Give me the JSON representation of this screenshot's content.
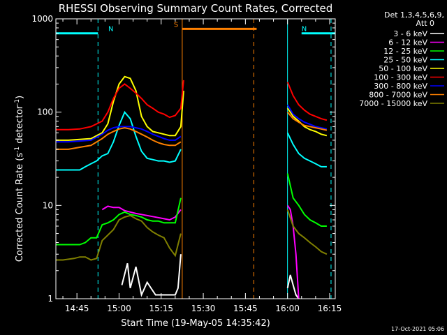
{
  "chart_data": {
    "type": "line",
    "title": "RHESSI Observing Summary Count Rates, Corrected",
    "xlabel": "Start Time (19-May-05 14:35:42)",
    "ylabel_main": "Corrected Count Rate (s",
    "ylabel_sup1": "-1",
    "ylabel_mid": " detector",
    "ylabel_sup2": "-1",
    "ylabel_end": ")",
    "yscale": "log",
    "ylim": [
      1,
      1000
    ],
    "xlim_minutes": [
      37.5,
      137
    ],
    "x_ticks": [
      {
        "label": "14:45",
        "min": 45
      },
      {
        "label": "15:00",
        "min": 60
      },
      {
        "label": "15:15",
        "min": 75
      },
      {
        "label": "15:30",
        "min": 90
      },
      {
        "label": "15:45",
        "min": 105
      },
      {
        "label": "16:00",
        "min": 120
      },
      {
        "label": "16:15",
        "min": 135
      }
    ],
    "y_ticks": [
      {
        "label": "1",
        "value": 1
      },
      {
        "label": "10",
        "value": 10
      },
      {
        "label": "100",
        "value": 100
      },
      {
        "label": "1000",
        "value": 1000
      }
    ],
    "legend_header": [
      "Det 1,3,4,5,6,9,",
      "Att 0"
    ],
    "legend_placement": "right",
    "timestamp": "17-Oct-2021 05:06",
    "flags": [
      {
        "label": "N",
        "color": "#00ffff",
        "start": 37.5,
        "end": 52.5,
        "level": 700
      },
      {
        "label": "N",
        "color": "#00ffff",
        "start": 125,
        "end": 137,
        "level": 700
      },
      {
        "label": "S",
        "color": "#ff8000",
        "start": 82.5,
        "end": 109,
        "level": 780
      }
    ],
    "night_lines": [
      {
        "t": 37.5,
        "style": "solid",
        "color": "#00ffff"
      },
      {
        "t": 52.5,
        "style": "dashed",
        "color": "#00ffff"
      },
      {
        "t": 120,
        "style": "solid",
        "color": "#00ffff"
      },
      {
        "t": 135.5,
        "style": "dashed",
        "color": "#00ffff"
      }
    ],
    "saa_lines": [
      {
        "t": 82.5,
        "style": "solid",
        "color": "#ff8000"
      },
      {
        "t": 108,
        "style": "dashed",
        "color": "#ff8000"
      }
    ],
    "series": [
      {
        "name": "3 - 6 keV",
        "color": "#ffffff",
        "points": [
          [
            61,
            1.4
          ],
          [
            63,
            2.4
          ],
          [
            64,
            1.3
          ],
          [
            66,
            2.2
          ],
          [
            68,
            1.1
          ],
          [
            70,
            1.5
          ],
          [
            73,
            1.1
          ],
          [
            78,
            1.1
          ],
          [
            80,
            1.1
          ],
          [
            81,
            1.3
          ],
          [
            82,
            3
          ],
          [
            120,
            1.3
          ],
          [
            121,
            1.8
          ],
          [
            122,
            1.4
          ],
          [
            123,
            1.1
          ],
          [
            124,
            1.0
          ]
        ]
      },
      {
        "name": "6 - 12 keV",
        "color": "#ff00ff",
        "points": [
          [
            54,
            9
          ],
          [
            56,
            9.8
          ],
          [
            58,
            9.5
          ],
          [
            60,
            9.5
          ],
          [
            62,
            8.8
          ],
          [
            64,
            8.5
          ],
          [
            66,
            8.2
          ],
          [
            68,
            8.0
          ],
          [
            70,
            7.8
          ],
          [
            72,
            7.6
          ],
          [
            74,
            7.4
          ],
          [
            76,
            7.2
          ],
          [
            78,
            7.0
          ],
          [
            80,
            7.5
          ],
          [
            82,
            9
          ],
          [
            120,
            10
          ],
          [
            121,
            9
          ],
          [
            122,
            6
          ],
          [
            123,
            3
          ],
          [
            124,
            1.0
          ]
        ]
      },
      {
        "name": "12 - 25 keV",
        "color": "#00ff00",
        "points": [
          [
            37.5,
            3.8
          ],
          [
            40,
            3.8
          ],
          [
            44,
            3.8
          ],
          [
            46,
            3.8
          ],
          [
            48,
            4.0
          ],
          [
            50,
            4.5
          ],
          [
            52,
            4.5
          ],
          [
            54,
            6.2
          ],
          [
            56,
            6.5
          ],
          [
            58,
            7.0
          ],
          [
            60,
            8.0
          ],
          [
            62,
            8.5
          ],
          [
            64,
            8.0
          ],
          [
            66,
            7.8
          ],
          [
            68,
            7.5
          ],
          [
            70,
            7.0
          ],
          [
            72,
            6.8
          ],
          [
            74,
            6.8
          ],
          [
            76,
            6.5
          ],
          [
            78,
            6.5
          ],
          [
            80,
            6.5
          ],
          [
            82,
            12
          ],
          [
            120,
            22
          ],
          [
            122,
            12
          ],
          [
            124,
            10
          ],
          [
            126,
            8
          ],
          [
            128,
            7
          ],
          [
            130,
            6.5
          ],
          [
            132,
            6
          ],
          [
            134,
            6
          ]
        ]
      },
      {
        "name": "25 - 50 keV",
        "color": "#00ffff",
        "points": [
          [
            37.5,
            24
          ],
          [
            40,
            24
          ],
          [
            44,
            24
          ],
          [
            46,
            24
          ],
          [
            48,
            26
          ],
          [
            50,
            28
          ],
          [
            52,
            30
          ],
          [
            54,
            34
          ],
          [
            56,
            36
          ],
          [
            58,
            48
          ],
          [
            60,
            72
          ],
          [
            62,
            100
          ],
          [
            64,
            85
          ],
          [
            66,
            55
          ],
          [
            68,
            38
          ],
          [
            70,
            32
          ],
          [
            72,
            31
          ],
          [
            74,
            30
          ],
          [
            76,
            30
          ],
          [
            78,
            29
          ],
          [
            80,
            30
          ],
          [
            82,
            40
          ],
          [
            120,
            60
          ],
          [
            122,
            45
          ],
          [
            124,
            36
          ],
          [
            126,
            32
          ],
          [
            128,
            30
          ],
          [
            130,
            28
          ],
          [
            132,
            26
          ],
          [
            134,
            26
          ]
        ]
      },
      {
        "name": "50 - 100 keV",
        "color": "#ffff00",
        "points": [
          [
            37.5,
            50
          ],
          [
            42,
            50
          ],
          [
            46,
            51
          ],
          [
            50,
            52
          ],
          [
            54,
            60
          ],
          [
            56,
            75
          ],
          [
            58,
            130
          ],
          [
            60,
            200
          ],
          [
            62,
            240
          ],
          [
            64,
            230
          ],
          [
            66,
            170
          ],
          [
            68,
            90
          ],
          [
            70,
            70
          ],
          [
            72,
            62
          ],
          [
            74,
            60
          ],
          [
            76,
            58
          ],
          [
            78,
            56
          ],
          [
            80,
            56
          ],
          [
            82,
            70
          ],
          [
            83,
            170
          ],
          [
            120,
            110
          ],
          [
            122,
            90
          ],
          [
            124,
            80
          ],
          [
            126,
            70
          ],
          [
            128,
            65
          ],
          [
            130,
            62
          ],
          [
            132,
            58
          ],
          [
            134,
            56
          ]
        ]
      },
      {
        "name": "100 - 300 keV",
        "color": "#ff0000",
        "points": [
          [
            37.5,
            65
          ],
          [
            42,
            65
          ],
          [
            46,
            66
          ],
          [
            50,
            70
          ],
          [
            54,
            80
          ],
          [
            56,
            100
          ],
          [
            58,
            140
          ],
          [
            60,
            180
          ],
          [
            62,
            200
          ],
          [
            64,
            180
          ],
          [
            66,
            160
          ],
          [
            68,
            140
          ],
          [
            70,
            120
          ],
          [
            72,
            110
          ],
          [
            74,
            100
          ],
          [
            76,
            95
          ],
          [
            78,
            88
          ],
          [
            80,
            92
          ],
          [
            82,
            110
          ],
          [
            83,
            220
          ],
          [
            120,
            210
          ],
          [
            122,
            150
          ],
          [
            124,
            120
          ],
          [
            126,
            105
          ],
          [
            128,
            95
          ],
          [
            130,
            90
          ],
          [
            132,
            85
          ],
          [
            134,
            82
          ]
        ]
      },
      {
        "name": "300 - 800 keV",
        "color": "#0000ff",
        "points": [
          [
            37.5,
            48
          ],
          [
            42,
            48
          ],
          [
            46,
            49
          ],
          [
            50,
            50
          ],
          [
            54,
            58
          ],
          [
            56,
            64
          ],
          [
            58,
            68
          ],
          [
            60,
            70
          ],
          [
            62,
            70
          ],
          [
            64,
            70
          ],
          [
            66,
            68
          ],
          [
            68,
            66
          ],
          [
            70,
            62
          ],
          [
            72,
            58
          ],
          [
            74,
            55
          ],
          [
            76,
            52
          ],
          [
            78,
            50
          ],
          [
            80,
            50
          ],
          [
            82,
            55
          ],
          [
            120,
            120
          ],
          [
            122,
            95
          ],
          [
            124,
            85
          ],
          [
            126,
            78
          ],
          [
            128,
            74
          ],
          [
            130,
            70
          ],
          [
            132,
            68
          ],
          [
            134,
            66
          ]
        ]
      },
      {
        "name": "800 - 7000 keV",
        "color": "#ff8000",
        "points": [
          [
            37.5,
            40
          ],
          [
            42,
            40
          ],
          [
            46,
            42
          ],
          [
            50,
            44
          ],
          [
            54,
            52
          ],
          [
            56,
            58
          ],
          [
            58,
            62
          ],
          [
            60,
            66
          ],
          [
            62,
            68
          ],
          [
            64,
            66
          ],
          [
            66,
            62
          ],
          [
            68,
            58
          ],
          [
            70,
            54
          ],
          [
            72,
            50
          ],
          [
            74,
            47
          ],
          [
            76,
            45
          ],
          [
            78,
            44
          ],
          [
            80,
            44
          ],
          [
            82,
            48
          ],
          [
            120,
            100
          ],
          [
            122,
            85
          ],
          [
            124,
            78
          ],
          [
            126,
            72
          ],
          [
            128,
            70
          ],
          [
            130,
            68
          ],
          [
            132,
            66
          ],
          [
            134,
            64
          ]
        ]
      },
      {
        "name": "7000 - 15000 keV",
        "color": "#808000",
        "points": [
          [
            37.5,
            2.6
          ],
          [
            40,
            2.6
          ],
          [
            44,
            2.7
          ],
          [
            46,
            2.8
          ],
          [
            48,
            2.8
          ],
          [
            50,
            2.6
          ],
          [
            52,
            2.7
          ],
          [
            54,
            4.2
          ],
          [
            56,
            4.8
          ],
          [
            58,
            5.5
          ],
          [
            60,
            7.0
          ],
          [
            62,
            7.5
          ],
          [
            64,
            7.8
          ],
          [
            66,
            7.2
          ],
          [
            68,
            6.8
          ],
          [
            70,
            5.8
          ],
          [
            72,
            5.2
          ],
          [
            74,
            4.8
          ],
          [
            76,
            4.5
          ],
          [
            78,
            3.5
          ],
          [
            80,
            2.9
          ],
          [
            82,
            5
          ],
          [
            120,
            9
          ],
          [
            122,
            6
          ],
          [
            124,
            5
          ],
          [
            126,
            4.5
          ],
          [
            128,
            4.0
          ],
          [
            130,
            3.6
          ],
          [
            132,
            3.2
          ],
          [
            134,
            3.0
          ]
        ]
      }
    ]
  }
}
